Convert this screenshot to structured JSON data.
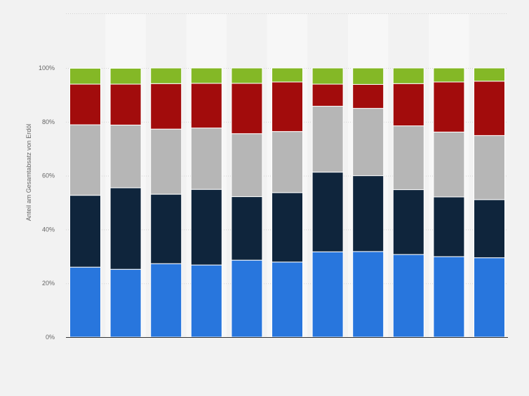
{
  "chart_data": {
    "type": "bar",
    "stacked": true,
    "ylabel": "Anteil am Gesamtabsatz von Erdöl",
    "ylim": [
      0,
      100
    ],
    "yticks": [
      "0%",
      "20%",
      "40%",
      "60%",
      "80%",
      "100%"
    ],
    "categories": [
      "",
      "",
      "",
      "",
      "",
      "",
      "",
      "",
      "",
      "",
      ""
    ],
    "grid": true,
    "series": [
      {
        "color": "#2876dd",
        "values": [
          26,
          25.2,
          27.3,
          26.8,
          28.6,
          27.9,
          31.7,
          31.8,
          30.7,
          29.9,
          29.5
        ]
      },
      {
        "color": "#0f253c",
        "values": [
          26.7,
          30.3,
          25.8,
          28.1,
          23.6,
          25.8,
          29.6,
          28.2,
          24.1,
          22.2,
          21.6
        ]
      },
      {
        "color": "#b6b6b6",
        "values": [
          26.2,
          23.3,
          24.2,
          22.8,
          23.4,
          22.7,
          24.5,
          25,
          23.7,
          24.1,
          23.8
        ]
      },
      {
        "color": "#a20c0c",
        "values": [
          15.1,
          15.2,
          16.9,
          16.6,
          18.7,
          18.4,
          8.2,
          8.9,
          15.7,
          18.6,
          20.2
        ]
      },
      {
        "color": "#84b826",
        "values": [
          5.9,
          5.9,
          5.8,
          5.7,
          5.7,
          5.2,
          6,
          6.1,
          5.8,
          5.2,
          4.9
        ]
      }
    ]
  }
}
